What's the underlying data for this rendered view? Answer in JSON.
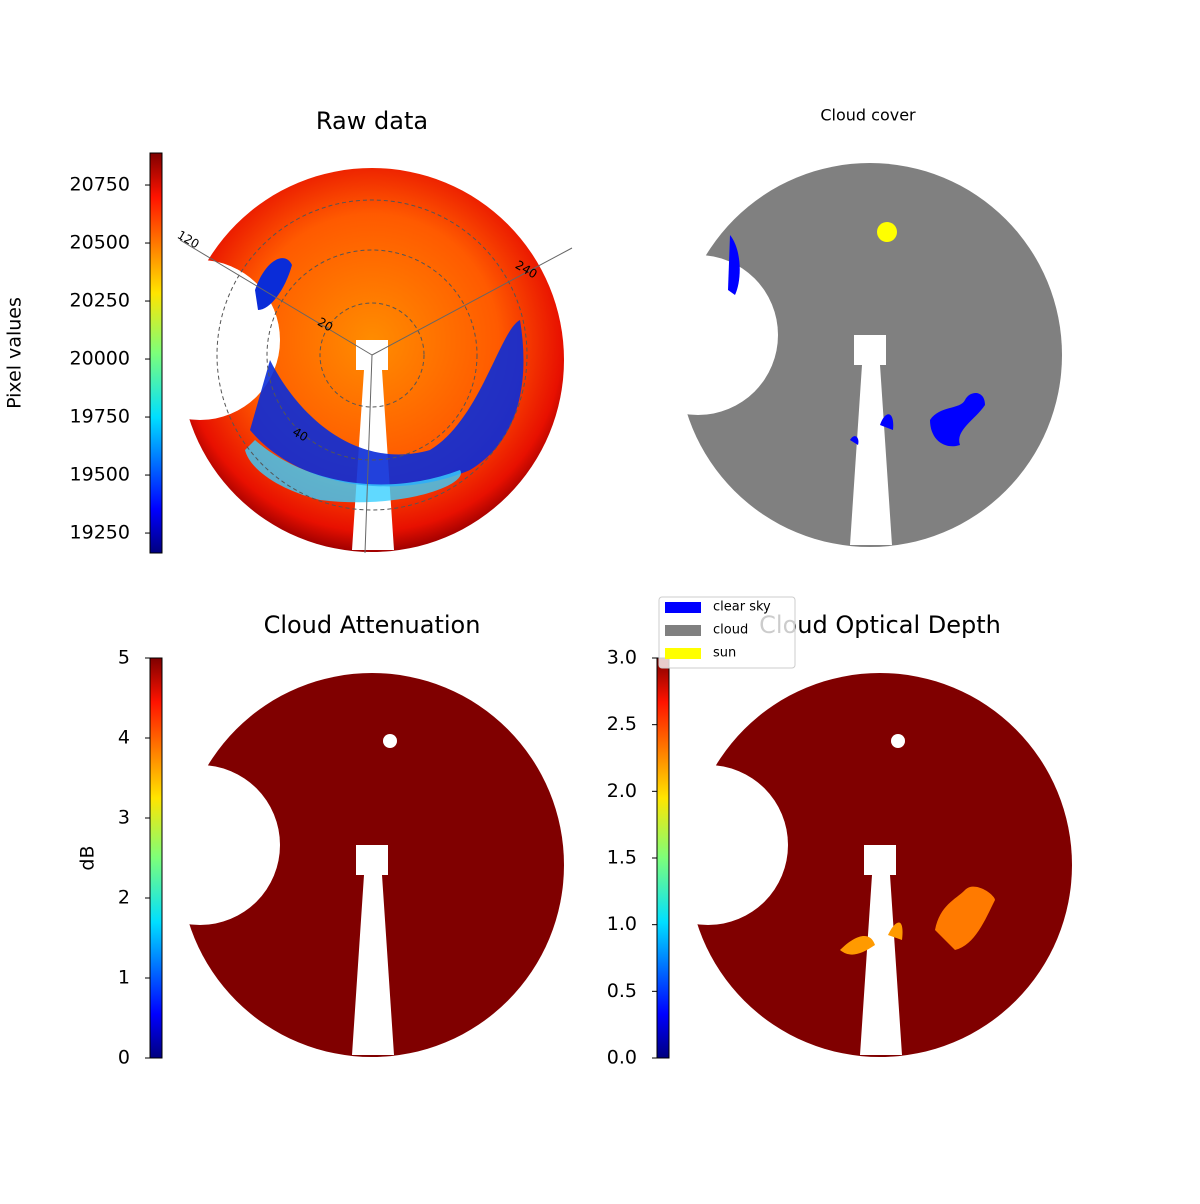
{
  "chart_data": [
    {
      "type": "image",
      "title": "Raw data",
      "ylabel": "Pixel values",
      "colormap": "jet",
      "ylim": [
        19164,
        20888
      ],
      "yticks": [
        19250,
        19500,
        19750,
        20000,
        20250,
        20500,
        20750
      ],
      "polar_labels": [
        "120",
        "240",
        "20",
        "40"
      ]
    },
    {
      "type": "image",
      "title": "Cloud cover",
      "legend_entries": [
        {
          "name": "clear sky",
          "color": "#0000ff"
        },
        {
          "name": "cloud",
          "color": "#808080"
        },
        {
          "name": "sun",
          "color": "#ffff00"
        }
      ]
    },
    {
      "type": "image",
      "title": "Cloud Attenuation",
      "ylabel": "dB",
      "colormap": "jet",
      "ylim": [
        0,
        5
      ],
      "yticks": [
        0,
        1,
        2,
        3,
        4,
        5
      ]
    },
    {
      "type": "image",
      "title": "Cloud Optical Depth",
      "colormap": "jet",
      "ylim": [
        0,
        3
      ],
      "yticks": [
        {
          "value": 0,
          "label": "0.0"
        },
        0.5,
        {
          "value": 1,
          "label": "1.0"
        },
        1.5,
        {
          "value": 2,
          "label": "2.0"
        },
        2.5,
        {
          "value": 3,
          "label": "3.0"
        }
      ]
    }
  ]
}
